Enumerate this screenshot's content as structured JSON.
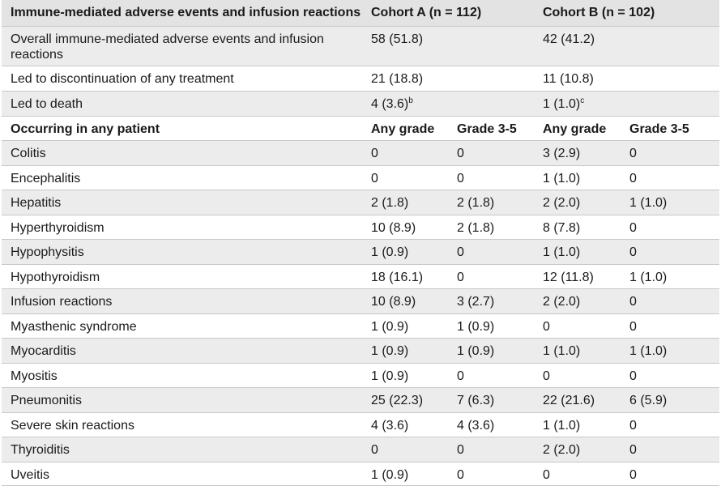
{
  "header": {
    "title": "Immune-mediated adverse events and infusion reactions",
    "cohort_a": "Cohort A (n = 112)",
    "cohort_b": "Cohort B (n = 102)"
  },
  "summary_rows": [
    {
      "label": "Overall immune-mediated adverse events and infusion reactions",
      "a": "58 (51.8)",
      "a_sup": "",
      "b": "42 (41.2)",
      "b_sup": ""
    },
    {
      "label": "Led to discontinuation of any treatment",
      "a": "21 (18.8)",
      "a_sup": "",
      "b": "11 (10.8)",
      "b_sup": ""
    },
    {
      "label": "Led to death",
      "a": "4 (3.6)",
      "a_sup": "b",
      "b": "1 (1.0)",
      "b_sup": "c"
    }
  ],
  "subheader": {
    "label": "Occurring in any patient",
    "a_any": "Any grade",
    "a_g35": "Grade 3-5",
    "b_any": "Any grade",
    "b_g35": "Grade 3-5"
  },
  "event_rows": [
    {
      "label": "Colitis",
      "a_any": "0",
      "a_g35": "0",
      "b_any": "3 (2.9)",
      "b_g35": "0"
    },
    {
      "label": "Encephalitis",
      "a_any": "0",
      "a_g35": "0",
      "b_any": "1 (1.0)",
      "b_g35": "0"
    },
    {
      "label": "Hepatitis",
      "a_any": "2 (1.8)",
      "a_g35": "2 (1.8)",
      "b_any": "2 (2.0)",
      "b_g35": "1 (1.0)"
    },
    {
      "label": "Hyperthyroidism",
      "a_any": "10 (8.9)",
      "a_g35": "2 (1.8)",
      "b_any": "8 (7.8)",
      "b_g35": "0"
    },
    {
      "label": "Hypophysitis",
      "a_any": "1 (0.9)",
      "a_g35": "0",
      "b_any": "1 (1.0)",
      "b_g35": "0"
    },
    {
      "label": "Hypothyroidism",
      "a_any": "18 (16.1)",
      "a_g35": "0",
      "b_any": "12 (11.8)",
      "b_g35": "1 (1.0)"
    },
    {
      "label": "Infusion reactions",
      "a_any": "10 (8.9)",
      "a_g35": "3 (2.7)",
      "b_any": "2 (2.0)",
      "b_g35": "0"
    },
    {
      "label": "Myasthenic syndrome",
      "a_any": "1 (0.9)",
      "a_g35": "1 (0.9)",
      "b_any": "0",
      "b_g35": "0"
    },
    {
      "label": "Myocarditis",
      "a_any": "1 (0.9)",
      "a_g35": "1 (0.9)",
      "b_any": "1 (1.0)",
      "b_g35": "1 (1.0)"
    },
    {
      "label": "Myositis",
      "a_any": "1 (0.9)",
      "a_g35": "0",
      "b_any": "0",
      "b_g35": "0"
    },
    {
      "label": "Pneumonitis",
      "a_any": "25 (22.3)",
      "a_g35": "7 (6.3)",
      "b_any": "22 (21.6)",
      "b_g35": "6 (5.9)"
    },
    {
      "label": "Severe skin reactions",
      "a_any": "4 (3.6)",
      "a_g35": "4 (3.6)",
      "b_any": "1 (1.0)",
      "b_g35": "0"
    },
    {
      "label": "Thyroiditis",
      "a_any": "0",
      "a_g35": "0",
      "b_any": "2 (2.0)",
      "b_g35": "0"
    },
    {
      "label": "Uveitis",
      "a_any": "1 (0.9)",
      "a_g35": "0",
      "b_any": "0",
      "b_g35": "0"
    }
  ]
}
